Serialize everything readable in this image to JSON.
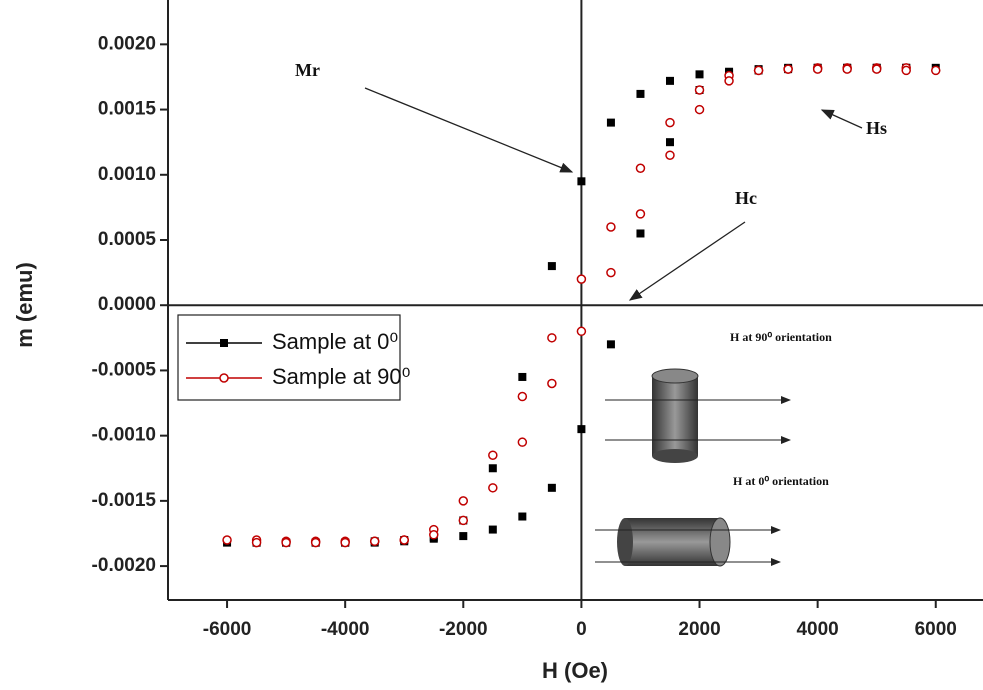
{
  "chart_data": {
    "type": "scatter",
    "x_label": "H (Oe)",
    "y_label": "m (emu)",
    "xlim": [
      -7000,
      6800
    ],
    "ylim": [
      -0.00226,
      0.00234
    ],
    "xticks": [
      -6000,
      -4000,
      -2000,
      0,
      2000,
      4000,
      6000
    ],
    "yticks": [
      {
        "value": 0.002,
        "label": "0.0020"
      },
      {
        "value": 0.0015,
        "label": "0.0015"
      },
      {
        "value": 0.001,
        "label": "0.0010"
      },
      {
        "value": 0.0005,
        "label": "0.0005"
      },
      {
        "value": 0,
        "label": "0.0000"
      },
      {
        "value": -0.0005,
        "label": "-0.0005"
      },
      {
        "value": -0.001,
        "label": "-0.0010"
      },
      {
        "value": -0.0015,
        "label": "-0.0015"
      },
      {
        "value": -0.002,
        "label": "-0.0020"
      }
    ],
    "legend": "upper left",
    "series": [
      {
        "name": "Sample at 0⁰",
        "color": "#000000",
        "marker": "square",
        "x": [
          6000,
          5500,
          5000,
          4500,
          4000,
          3500,
          3000,
          2500,
          2000,
          1500,
          1000,
          500,
          0,
          -500,
          -1000,
          -1500,
          -2000,
          -2500,
          -3000,
          -3500,
          -4000,
          -4500,
          -5000,
          -5500,
          -6000,
          -5500,
          -5000,
          -4500,
          -4000,
          -3500,
          -3000,
          -2500,
          -2000,
          -1500,
          -1000,
          -500,
          0,
          500,
          1000,
          1500,
          2000,
          2500,
          3000,
          3500,
          4000,
          4500,
          5000,
          5500
        ],
        "values": [
          0.00182,
          0.00182,
          0.00182,
          0.00182,
          0.00182,
          0.00181,
          0.0018,
          0.00179,
          0.00177,
          0.00172,
          0.00162,
          0.0014,
          0.00095,
          0.0003,
          -0.00055,
          -0.00125,
          -0.00165,
          -0.00178,
          -0.00181,
          -0.00182,
          -0.00182,
          -0.00182,
          -0.00182,
          -0.00182,
          -0.00182,
          -0.00182,
          -0.00182,
          -0.00182,
          -0.00182,
          -0.00181,
          -0.0018,
          -0.00179,
          -0.00177,
          -0.00172,
          -0.00162,
          -0.0014,
          -0.00095,
          -0.0003,
          0.00055,
          0.00125,
          0.00165,
          0.00178,
          0.00181,
          0.00182,
          0.00182,
          0.00182,
          0.00182,
          0.00182
        ]
      },
      {
        "name": "Sample at 90⁰",
        "color": "#c00000",
        "marker": "circle-open",
        "x": [
          6000,
          5500,
          5000,
          4500,
          4000,
          3500,
          3000,
          2500,
          2000,
          1500,
          1000,
          500,
          0,
          -500,
          -1000,
          -1500,
          -2000,
          -2500,
          -3000,
          -3500,
          -4000,
          -4500,
          -5000,
          -5500,
          -6000,
          -5500,
          -5000,
          -4500,
          -4000,
          -3500,
          -3000,
          -2500,
          -2000,
          -1500,
          -1000,
          -500,
          0,
          500,
          1000,
          1500,
          2000,
          2500,
          3000,
          3500,
          4000,
          4500,
          5000,
          5500
        ],
        "values": [
          0.0018,
          0.00182,
          0.00182,
          0.00182,
          0.00182,
          0.00181,
          0.0018,
          0.00176,
          0.00165,
          0.0014,
          0.00105,
          0.0006,
          0.0002,
          -0.00025,
          -0.0007,
          -0.00115,
          -0.0015,
          -0.00172,
          -0.0018,
          -0.00181,
          -0.00181,
          -0.00181,
          -0.00181,
          -0.0018,
          -0.0018,
          -0.00182,
          -0.00182,
          -0.00182,
          -0.00182,
          -0.00181,
          -0.0018,
          -0.00176,
          -0.00165,
          -0.0014,
          -0.00105,
          -0.0006,
          -0.0002,
          0.00025,
          0.0007,
          0.00115,
          0.0015,
          0.00172,
          0.0018,
          0.00181,
          0.00181,
          0.00181,
          0.00181,
          0.0018
        ]
      }
    ],
    "annotations": [
      "Mr",
      "Hs",
      "Hc",
      "H at 90⁰ orientation",
      "H at 0⁰ orientation"
    ]
  }
}
